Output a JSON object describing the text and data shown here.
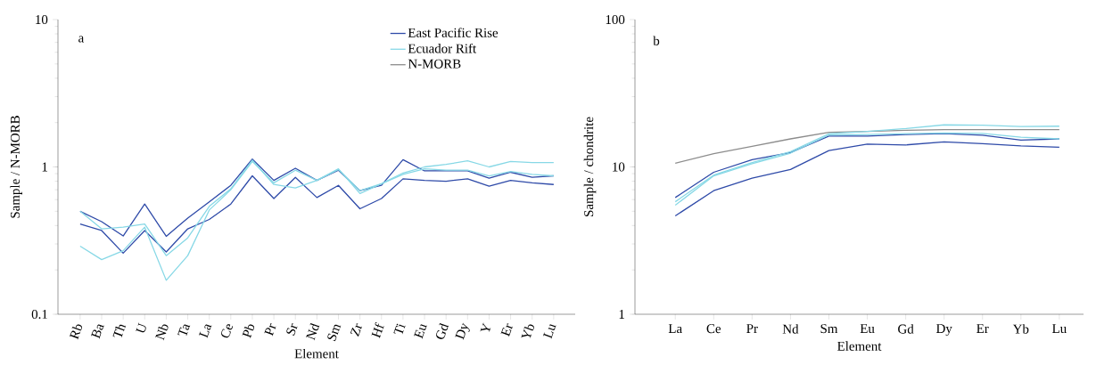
{
  "chart_data": [
    {
      "type": "line",
      "xlabel": "Element",
      "ylabel": "Sample / N-MORB",
      "annotations": [
        "a"
      ],
      "categories": [
        "Rb",
        "Ba",
        "Th",
        "U",
        "Nb",
        "Ta",
        "La",
        "Ce",
        "Pb",
        "Pr",
        "Sr",
        "Nd",
        "Sm",
        "Zr",
        "Hf",
        "Ti",
        "Eu",
        "Gd",
        "Dy",
        "Y",
        "Er",
        "Yb",
        "Lu"
      ],
      "log": "y",
      "ylim": [
        0.1,
        10
      ],
      "yticks": [
        0.1,
        1,
        10
      ],
      "legend": "top right",
      "grid": false,
      "series": [
        {
          "name": "East Pacific Rise",
          "color": "#2e4aa8",
          "values": [
            0.5,
            0.425,
            0.34,
            0.56,
            0.338,
            0.45,
            0.58,
            0.75,
            1.13,
            0.81,
            0.98,
            0.81,
            0.95,
            0.69,
            0.75,
            1.12,
            0.94,
            0.94,
            0.94,
            0.84,
            0.92,
            0.85,
            0.87
          ]
        },
        {
          "color": "#2e4aa8",
          "values": [
            0.41,
            0.37,
            0.26,
            0.37,
            0.265,
            0.38,
            0.44,
            0.56,
            0.87,
            0.61,
            0.85,
            0.62,
            0.75,
            0.52,
            0.61,
            0.83,
            0.81,
            0.8,
            0.83,
            0.74,
            0.81,
            0.78,
            0.76
          ]
        },
        {
          "name": "Ecuador Rift",
          "color": "#87d8e6",
          "values": [
            0.5,
            0.38,
            0.39,
            0.41,
            0.25,
            0.33,
            0.54,
            0.71,
            1.11,
            0.76,
            0.72,
            0.81,
            0.97,
            0.66,
            0.77,
            0.91,
            1.0,
            1.04,
            1.1,
            1.0,
            1.09,
            1.07,
            1.07
          ]
        },
        {
          "color": "#87d8e6",
          "values": [
            0.29,
            0.235,
            0.27,
            0.39,
            0.17,
            0.25,
            0.51,
            0.7,
            1.09,
            0.78,
            0.95,
            0.81,
            0.96,
            0.69,
            0.77,
            0.89,
            0.97,
            0.95,
            0.95,
            0.87,
            0.93,
            0.89,
            0.87
          ]
        }
      ]
    },
    {
      "type": "line",
      "xlabel": "Element",
      "ylabel": "Sample / chondrite",
      "annotations": [
        "b"
      ],
      "categories": [
        "La",
        "Ce",
        "Pr",
        "Nd",
        "Sm",
        "Eu",
        "Gd",
        "Dy",
        "Er",
        "Yb",
        "Lu"
      ],
      "log": "y",
      "ylim": [
        1,
        100
      ],
      "yticks": [
        1,
        10,
        100
      ],
      "legend": false,
      "grid": false,
      "series": [
        {
          "name": "N-MORB",
          "color": "#8c8c8c",
          "values": [
            10.6,
            12.3,
            13.8,
            15.5,
            17.2,
            17.4,
            17.7,
            17.9,
            17.9,
            17.9,
            17.9
          ]
        },
        {
          "color": "#2e4aa8",
          "values": [
            6.2,
            9.2,
            11.2,
            12.5,
            16.2,
            16.2,
            16.6,
            16.8,
            16.4,
            15.2,
            15.5
          ]
        },
        {
          "color": "#2e4aa8",
          "values": [
            4.65,
            6.9,
            8.4,
            9.6,
            12.9,
            14.3,
            14.1,
            14.8,
            14.4,
            13.9,
            13.6
          ]
        },
        {
          "color": "#87d8e6",
          "values": [
            5.8,
            8.8,
            10.7,
            12.7,
            16.8,
            17.4,
            18.2,
            19.3,
            19.2,
            18.8,
            18.9
          ]
        },
        {
          "color": "#87d8e6",
          "values": [
            5.5,
            8.7,
            10.5,
            12.4,
            16.5,
            16.6,
            16.8,
            17.0,
            16.9,
            15.9,
            15.5
          ]
        }
      ]
    }
  ]
}
